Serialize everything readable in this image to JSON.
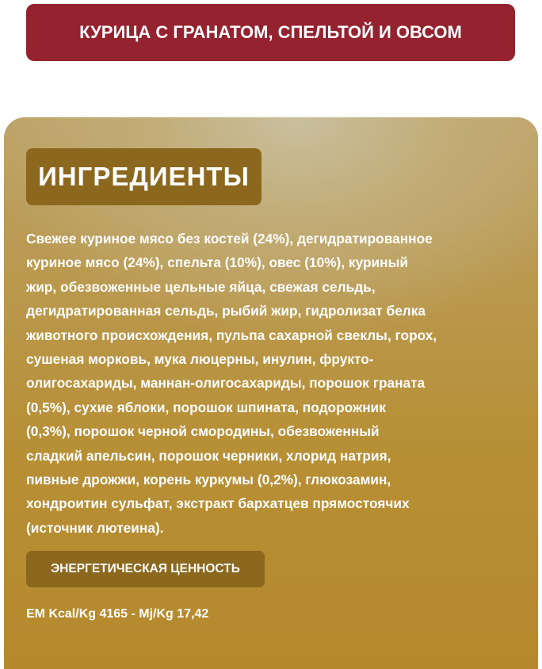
{
  "header": {
    "title": "КУРИЦА С ГРАНАТОМ, СПЕЛЬТОЙ И ОВСОМ"
  },
  "ingredients": {
    "heading": "ИНГРЕДИЕНТЫ",
    "lines": [
      "Свежее куриное мясо без костей (24%), дегидратированное",
      "куриное мясо (24%), спельта (10%), овес (10%), куриный",
      "жир, обезвоженные цельные яйца, свежая сельдь,",
      "дегидратированная сельдь, рыбий жир, гидролизат белка",
      "животного происхождения, пульпа сахарной свеклы, горох,",
      "сушеная морковь, мука люцерны, инулин, фрукто-",
      "олигосахариды, маннан-олигосахариды, порошок граната",
      "(0,5%), сухие яблоки, порошок шпината, подорожник",
      "(0,3%), порошок черной смородины, обезвоженный",
      "сладкий апельсин, порошок черники, хлорид натрия,",
      "пивные дрожжи, корень куркумы (0,2%), глюкозамин,",
      "хондроитин сульфат, экстракт бархатцев прямостоячих",
      "(источник лютеина)."
    ]
  },
  "energy": {
    "heading": "ЭНЕРГЕТИЧЕСКАЯ ЦЕННОСТЬ",
    "text": "EM Kcal/Kg 4165 - Mj/Kg 17,42"
  }
}
